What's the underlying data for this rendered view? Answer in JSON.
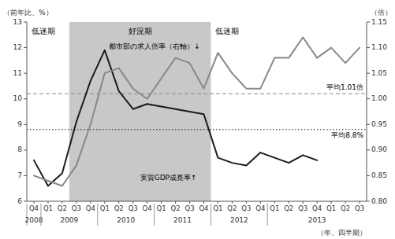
{
  "chart_data": {
    "type": "line",
    "categories": [
      "Q4",
      "Q1",
      "Q2",
      "Q3",
      "Q4",
      "Q1",
      "Q2",
      "Q3",
      "Q4",
      "Q1",
      "Q2",
      "Q3",
      "Q4",
      "Q1",
      "Q2",
      "Q3",
      "Q4",
      "Q1",
      "Q2",
      "Q3",
      "Q4",
      "Q1",
      "Q2",
      "Q3"
    ],
    "years": [
      "2008",
      "2009",
      "2010",
      "2011",
      "2012",
      "2013"
    ],
    "year_start_indices": [
      0,
      1,
      5,
      9,
      13,
      17
    ],
    "series": [
      {
        "name": "実質GDP成長率↑",
        "color": "#1a1a1a",
        "values": [
          7.6,
          6.6,
          7.1,
          9.1,
          10.7,
          11.9,
          10.3,
          9.6,
          9.8,
          9.7,
          9.6,
          9.5,
          9.4,
          7.7,
          7.5,
          7.4,
          7.9,
          7.7,
          7.5,
          7.8,
          7.6,
          null,
          null,
          null
        ]
      },
      {
        "name": "都市部の求人倍率（右軸）↓",
        "color": "#888888",
        "axis": "y2",
        "values": [
          0.85,
          0.84,
          0.83,
          0.87,
          0.95,
          1.05,
          1.06,
          1.02,
          1.0,
          1.04,
          1.08,
          1.07,
          1.02,
          1.09,
          1.05,
          1.02,
          1.02,
          1.08,
          1.08,
          1.12,
          1.08,
          1.1,
          1.07,
          1.1
        ]
      }
    ],
    "reference_lines": [
      {
        "value": 8.8,
        "label": "平均8.8%",
        "axis": "y",
        "line_style": "dotted",
        "color": "#1a1a1a"
      },
      {
        "value": 1.01,
        "label": "平均1.01倍",
        "axis": "y2",
        "line_style": "dashed",
        "color": "#888888"
      }
    ],
    "shading": {
      "start": 2.5,
      "end": 12.5,
      "color": "#c8c8c8"
    },
    "period_labels": [
      "低迷期",
      "好況期",
      "低迷期"
    ],
    "ylabel": "（前年比、%）",
    "y2label": "（倍）",
    "xlabel": "（年、四半期）",
    "ylim": [
      6,
      13
    ],
    "yticks": [
      6,
      7,
      8,
      9,
      10,
      11,
      12,
      13
    ],
    "y2lim": [
      0.8,
      1.15
    ],
    "y2ticks": [
      {
        "value": 0.8,
        "label": "0.80"
      },
      0.85,
      {
        "value": 0.9,
        "label": "0.90"
      },
      0.95,
      {
        "value": 1.0,
        "label": "1.00"
      },
      1.05,
      {
        "value": 1.1,
        "label": "1.10"
      },
      1.15
    ],
    "grid": false
  }
}
